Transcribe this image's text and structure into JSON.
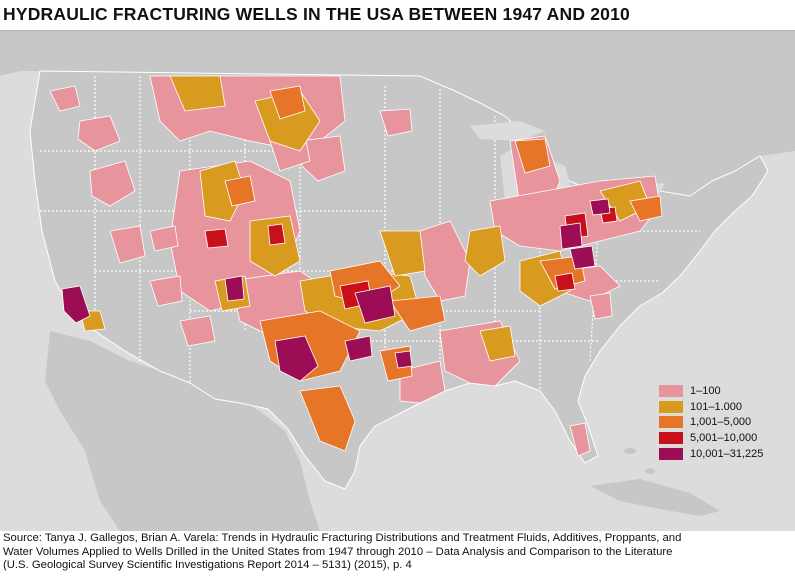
{
  "title": "HYDRAULIC FRACTURING WELLS IN THE USA BETWEEN 1947 AND 2010",
  "colors": {
    "land": "#c7c7c7",
    "water": "#dcdcdc",
    "border": "#ffffff",
    "tier1": "#e8949d",
    "tier2": "#d99a20",
    "tier3": "#e67528",
    "tier4": "#c8101b",
    "tier5": "#9c0d56"
  },
  "legend": {
    "items": [
      {
        "label": "1–100",
        "color": "#e8949d"
      },
      {
        "label": "101–1.000",
        "color": "#d99a20"
      },
      {
        "label": "1,001–5,000",
        "color": "#e67528"
      },
      {
        "label": "5,001–10,000",
        "color": "#c8101b"
      },
      {
        "label": "10,001–31,225",
        "color": "#9c0d56"
      }
    ]
  },
  "source": {
    "line1": "Source: Tanya J. Gallegos, Brian A. Varela: Trends in Hydraulic Fracturing Distributions and Treatment Fluids, Additives, Proppants, and",
    "line2": "Water Volumes Applied to Wells Drilled in the United States from 1947 through 2010 – Data Analysis and Comparison to the Literature",
    "line3": "(U.S. Geological Survey Scientific Investigations Report 2014 – 5131) (2015), p. 4"
  }
}
